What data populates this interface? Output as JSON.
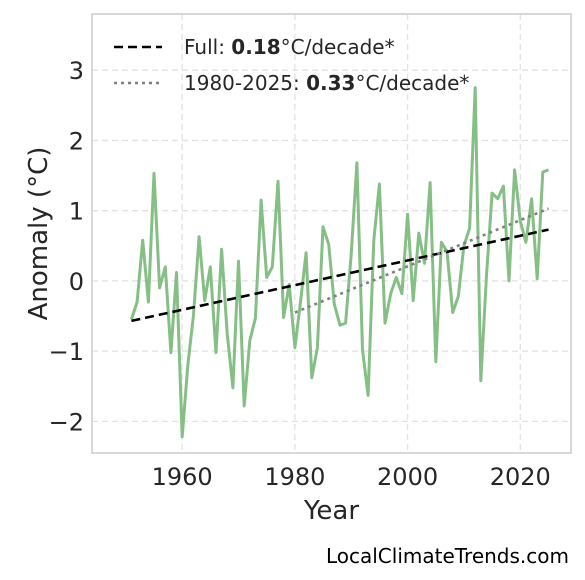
{
  "chart_data": {
    "type": "line",
    "xlabel": "Year",
    "ylabel": "Anomaly (°C)",
    "xlim": [
      1944,
      2029
    ],
    "ylim": [
      -2.45,
      3.8
    ],
    "xticks": [
      1960,
      1980,
      2000,
      2020
    ],
    "xtick_labels": [
      "1960",
      "1980",
      "2000",
      "2020"
    ],
    "yticks": [
      -2,
      -1,
      0,
      1,
      2,
      3
    ],
    "ytick_labels": [
      "−2",
      "−1",
      "0",
      "1",
      "2",
      "3"
    ],
    "grid": true,
    "legend_position": "top-left",
    "series": [
      {
        "style": "solid",
        "color": "#86bf86",
        "x": [
          1951,
          1952,
          1953,
          1954,
          1955,
          1956,
          1957,
          1958,
          1959,
          1960,
          1961,
          1962,
          1963,
          1964,
          1965,
          1966,
          1967,
          1968,
          1969,
          1970,
          1971,
          1972,
          1973,
          1974,
          1975,
          1976,
          1977,
          1978,
          1979,
          1980,
          1981,
          1982,
          1983,
          1984,
          1985,
          1986,
          1987,
          1988,
          1989,
          1990,
          1991,
          1992,
          1993,
          1994,
          1995,
          1996,
          1997,
          1998,
          1999,
          2000,
          2001,
          2002,
          2003,
          2004,
          2005,
          2006,
          2007,
          2008,
          2009,
          2010,
          2011,
          2012,
          2013,
          2014,
          2015,
          2016,
          2017,
          2018,
          2019,
          2020,
          2021,
          2022,
          2023,
          2024,
          2025
        ],
        "y": [
          -0.55,
          -0.3,
          0.58,
          -0.3,
          1.53,
          -0.1,
          0.2,
          -1.02,
          0.12,
          -2.22,
          -1.2,
          -0.5,
          0.63,
          -0.28,
          0.2,
          -1.02,
          0.45,
          -0.75,
          -1.52,
          0.28,
          -1.78,
          -0.85,
          -0.53,
          1.15,
          0.05,
          0.2,
          1.42,
          -0.52,
          -0.05,
          -0.95,
          -0.3,
          0.4,
          -1.38,
          -0.95,
          0.77,
          0.52,
          -0.33,
          -0.63,
          -0.6,
          0.38,
          1.68,
          -0.98,
          -1.63,
          0.58,
          1.38,
          -0.6,
          -0.18,
          0.05,
          -0.18,
          0.95,
          -0.28,
          0.68,
          0.25,
          1.4,
          -1.15,
          0.55,
          0.42,
          -0.45,
          -0.22,
          0.5,
          0.75,
          2.75,
          -1.42,
          0.08,
          1.25,
          1.17,
          1.35,
          0.0,
          1.58,
          0.85,
          0.55,
          1.17,
          0.03,
          1.55,
          1.58
        ]
      },
      {
        "name": "Full: 0.18°C/decade*",
        "style": "dashed",
        "color": "#000000",
        "x": [
          1951,
          2025
        ],
        "y": [
          -0.57,
          0.73
        ]
      },
      {
        "name": "1980-2025: 0.33°C/decade*",
        "style": "dotted",
        "color": "#808080",
        "x": [
          1980,
          2025
        ],
        "y": [
          -0.45,
          1.03
        ]
      }
    ],
    "legend": [
      {
        "prefix": "Full: ",
        "value": "0.18",
        "suffix": "°C/decade*",
        "style": "dashed",
        "color": "#000000"
      },
      {
        "prefix": "1980-2025: ",
        "value": "0.33",
        "suffix": "°C/decade*",
        "style": "dotted",
        "color": "#808080"
      }
    ]
  },
  "credit": "LocalClimateTrends.com"
}
